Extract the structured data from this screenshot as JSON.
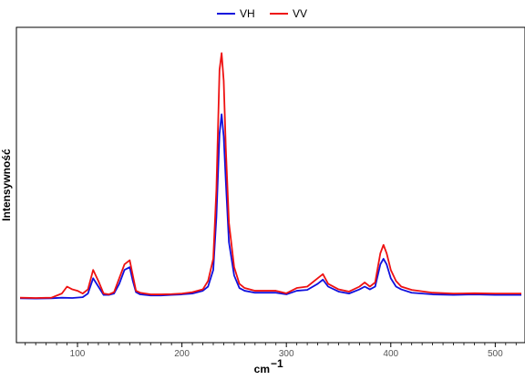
{
  "chart_data": {
    "type": "line",
    "title": "",
    "xlabel": "cm",
    "xlabel_superscript": "−1",
    "ylabel": "Intensywność",
    "xlim": [
      45,
      525
    ],
    "ylim": [
      0,
      1.0
    ],
    "x_ticks": [
      100,
      200,
      300,
      400,
      500
    ],
    "y_ticks_shown": false,
    "grid": false,
    "legend_position": "top-center",
    "series": [
      {
        "name": "VH",
        "color": "#1010dd",
        "x": [
          45,
          60,
          75,
          85,
          95,
          105,
          110,
          115,
          120,
          125,
          130,
          135,
          140,
          145,
          150,
          153,
          156,
          160,
          170,
          180,
          190,
          200,
          210,
          220,
          225,
          230,
          233,
          236,
          238,
          240,
          242,
          245,
          250,
          255,
          260,
          270,
          280,
          290,
          300,
          310,
          320,
          330,
          335,
          340,
          350,
          360,
          370,
          375,
          380,
          385,
          390,
          393,
          396,
          400,
          405,
          410,
          420,
          440,
          460,
          480,
          500,
          525
        ],
        "values": [
          0.058,
          0.057,
          0.058,
          0.06,
          0.059,
          0.062,
          0.075,
          0.13,
          0.1,
          0.07,
          0.07,
          0.075,
          0.11,
          0.16,
          0.17,
          0.12,
          0.08,
          0.072,
          0.068,
          0.068,
          0.07,
          0.072,
          0.075,
          0.085,
          0.1,
          0.16,
          0.35,
          0.65,
          0.72,
          0.64,
          0.48,
          0.26,
          0.14,
          0.095,
          0.085,
          0.078,
          0.078,
          0.078,
          0.072,
          0.085,
          0.088,
          0.11,
          0.125,
          0.1,
          0.082,
          0.075,
          0.09,
          0.1,
          0.09,
          0.1,
          0.18,
          0.2,
          0.18,
          0.13,
          0.1,
          0.09,
          0.078,
          0.072,
          0.07,
          0.072,
          0.07,
          0.07
        ]
      },
      {
        "name": "VV",
        "color": "#ee1111",
        "x": [
          45,
          60,
          75,
          85,
          90,
          95,
          100,
          105,
          110,
          115,
          120,
          125,
          130,
          135,
          140,
          145,
          150,
          153,
          156,
          160,
          170,
          180,
          190,
          200,
          210,
          220,
          225,
          230,
          233,
          236,
          238,
          240,
          242,
          245,
          250,
          255,
          260,
          270,
          280,
          290,
          300,
          310,
          320,
          330,
          335,
          340,
          350,
          360,
          370,
          375,
          380,
          385,
          390,
          393,
          396,
          400,
          405,
          410,
          420,
          440,
          460,
          480,
          500,
          525
        ],
        "values": [
          0.06,
          0.059,
          0.06,
          0.075,
          0.1,
          0.09,
          0.085,
          0.075,
          0.09,
          0.16,
          0.12,
          0.075,
          0.072,
          0.08,
          0.13,
          0.18,
          0.195,
          0.14,
          0.085,
          0.078,
          0.072,
          0.072,
          0.073,
          0.075,
          0.08,
          0.09,
          0.12,
          0.2,
          0.45,
          0.88,
          0.94,
          0.84,
          0.6,
          0.33,
          0.17,
          0.11,
          0.095,
          0.085,
          0.085,
          0.085,
          0.076,
          0.095,
          0.1,
          0.13,
          0.145,
          0.11,
          0.09,
          0.082,
          0.1,
          0.115,
          0.1,
          0.115,
          0.22,
          0.25,
          0.22,
          0.16,
          0.12,
          0.1,
          0.088,
          0.078,
          0.075,
          0.076,
          0.075,
          0.075
        ]
      }
    ]
  }
}
